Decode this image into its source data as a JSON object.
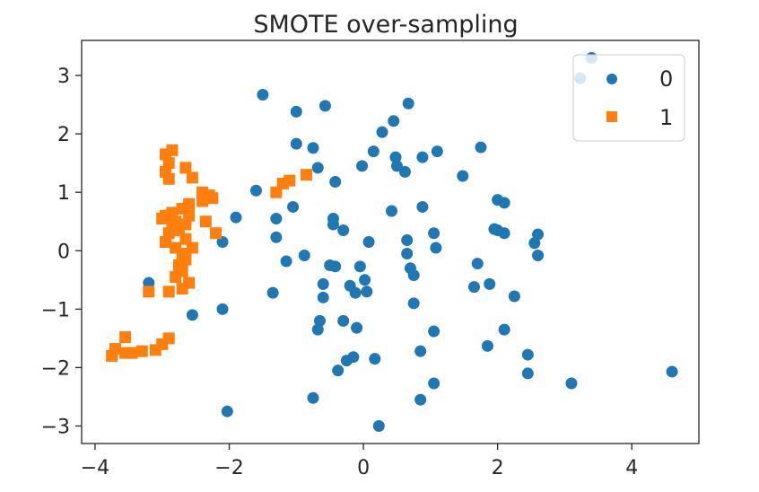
{
  "chart_data": {
    "type": "scatter",
    "title": "SMOTE over-sampling",
    "xlabel": "",
    "ylabel": "",
    "xlim": [
      -4.2,
      5.0
    ],
    "ylim": [
      -3.3,
      3.6
    ],
    "xticks": [
      -4,
      -2,
      0,
      2,
      4
    ],
    "yticks": [
      -3,
      -2,
      -1,
      0,
      1,
      2,
      3
    ],
    "xtick_labels": [
      "−4",
      "−2",
      "0",
      "2",
      "4"
    ],
    "ytick_labels": [
      "−3",
      "−2",
      "−1",
      "0",
      "1",
      "2",
      "3"
    ],
    "grid": false,
    "legend_position": "top-right",
    "series": [
      {
        "name": "0",
        "marker": "circle",
        "color": "#1f77b4",
        "points": [
          [
            -1.5,
            2.67
          ],
          [
            -1.0,
            2.38
          ],
          [
            -0.57,
            2.48
          ],
          [
            0.67,
            2.52
          ],
          [
            0.45,
            2.22
          ],
          [
            0.28,
            2.03
          ],
          [
            -1.0,
            1.83
          ],
          [
            -0.75,
            1.76
          ],
          [
            1.1,
            1.7
          ],
          [
            1.75,
            1.77
          ],
          [
            0.15,
            1.7
          ],
          [
            0.88,
            1.6
          ],
          [
            0.48,
            1.6
          ],
          [
            0.5,
            1.45
          ],
          [
            0.62,
            1.35
          ],
          [
            -0.02,
            1.45
          ],
          [
            -0.68,
            1.42
          ],
          [
            -0.42,
            1.18
          ],
          [
            1.48,
            1.28
          ],
          [
            -1.6,
            1.03
          ],
          [
            -1.05,
            0.75
          ],
          [
            0.42,
            0.68
          ],
          [
            0.88,
            0.75
          ],
          [
            2.0,
            0.87
          ],
          [
            2.1,
            0.82
          ],
          [
            -1.9,
            0.57
          ],
          [
            -1.3,
            0.55
          ],
          [
            -0.45,
            0.55
          ],
          [
            -0.45,
            0.45
          ],
          [
            -0.3,
            0.35
          ],
          [
            2.0,
            0.35
          ],
          [
            1.95,
            0.37
          ],
          [
            2.1,
            0.3
          ],
          [
            1.05,
            0.3
          ],
          [
            2.6,
            0.28
          ],
          [
            2.55,
            0.13
          ],
          [
            0.65,
            0.18
          ],
          [
            1.08,
            0.05
          ],
          [
            0.08,
            0.15
          ],
          [
            -1.3,
            0.23
          ],
          [
            -2.1,
            0.15
          ],
          [
            0.65,
            -0.05
          ],
          [
            2.6,
            -0.08
          ],
          [
            -0.88,
            -0.08
          ],
          [
            -1.15,
            -0.18
          ],
          [
            -0.5,
            -0.25
          ],
          [
            -0.42,
            -0.27
          ],
          [
            -0.05,
            -0.27
          ],
          [
            0.7,
            -0.3
          ],
          [
            1.7,
            -0.22
          ],
          [
            0.75,
            -0.42
          ],
          [
            0.02,
            -0.5
          ],
          [
            -0.6,
            -0.57
          ],
          [
            -0.2,
            -0.6
          ],
          [
            -0.6,
            -0.8
          ],
          [
            -1.35,
            -0.72
          ],
          [
            0.05,
            -0.7
          ],
          [
            -0.12,
            -0.72
          ],
          [
            1.65,
            -0.62
          ],
          [
            1.88,
            -0.57
          ],
          [
            2.25,
            -0.78
          ],
          [
            0.75,
            -0.9
          ],
          [
            -3.2,
            -0.55
          ],
          [
            -2.1,
            -1.0
          ],
          [
            -2.55,
            -1.1
          ],
          [
            -0.65,
            -1.2
          ],
          [
            -0.3,
            -1.2
          ],
          [
            -0.1,
            -1.32
          ],
          [
            -0.68,
            -1.35
          ],
          [
            1.05,
            -1.38
          ],
          [
            2.1,
            -1.35
          ],
          [
            1.85,
            -1.63
          ],
          [
            0.85,
            -1.72
          ],
          [
            -0.15,
            -1.82
          ],
          [
            -0.25,
            -1.88
          ],
          [
            0.17,
            -1.85
          ],
          [
            2.45,
            -1.78
          ],
          [
            -0.38,
            -2.05
          ],
          [
            2.45,
            -2.1
          ],
          [
            1.05,
            -2.27
          ],
          [
            3.1,
            -2.27
          ],
          [
            4.6,
            -2.07
          ],
          [
            -0.75,
            -2.52
          ],
          [
            0.85,
            -2.55
          ],
          [
            -2.03,
            -2.75
          ],
          [
            0.23,
            -3.0
          ],
          [
            3.23,
            2.95
          ],
          [
            3.4,
            3.3
          ]
        ]
      },
      {
        "name": "1",
        "marker": "square",
        "color": "#ff7f0e",
        "points": [
          [
            -2.85,
            1.72
          ],
          [
            -2.95,
            1.65
          ],
          [
            -2.9,
            1.5
          ],
          [
            -2.95,
            1.35
          ],
          [
            -2.9,
            1.23
          ],
          [
            -2.65,
            1.42
          ],
          [
            -2.55,
            1.25
          ],
          [
            -2.4,
            1.0
          ],
          [
            -2.3,
            0.95
          ],
          [
            -2.4,
            0.85
          ],
          [
            -2.25,
            0.9
          ],
          [
            -2.6,
            0.8
          ],
          [
            -2.7,
            0.72
          ],
          [
            -2.85,
            0.65
          ],
          [
            -2.95,
            0.6
          ],
          [
            -3.0,
            0.55
          ],
          [
            -2.8,
            0.5
          ],
          [
            -2.65,
            0.45
          ],
          [
            -2.75,
            0.35
          ],
          [
            -2.9,
            0.3
          ],
          [
            -2.95,
            0.15
          ],
          [
            -2.8,
            0.05
          ],
          [
            -2.7,
            -0.05
          ],
          [
            -2.65,
            -0.15
          ],
          [
            -2.75,
            -0.25
          ],
          [
            -2.7,
            -0.35
          ],
          [
            -2.8,
            -0.45
          ],
          [
            -2.6,
            -0.55
          ],
          [
            -2.7,
            -0.65
          ],
          [
            -2.9,
            -0.7
          ],
          [
            -3.2,
            -0.7
          ],
          [
            -2.35,
            0.5
          ],
          [
            -2.2,
            0.3
          ],
          [
            -2.55,
            0.05
          ],
          [
            -1.1,
            1.2
          ],
          [
            -1.3,
            1.0
          ],
          [
            -1.2,
            1.15
          ],
          [
            -0.85,
            1.3
          ],
          [
            -2.9,
            -1.5
          ],
          [
            -3.0,
            -1.6
          ],
          [
            -3.1,
            -1.7
          ],
          [
            -3.3,
            -1.72
          ],
          [
            -3.45,
            -1.75
          ],
          [
            -3.55,
            -1.75
          ],
          [
            -3.75,
            -1.8
          ],
          [
            -3.7,
            -1.68
          ],
          [
            -3.55,
            -1.48
          ],
          [
            -2.65,
            0.2
          ],
          [
            -2.85,
            0.4
          ],
          [
            -2.6,
            0.6
          ]
        ]
      }
    ]
  }
}
